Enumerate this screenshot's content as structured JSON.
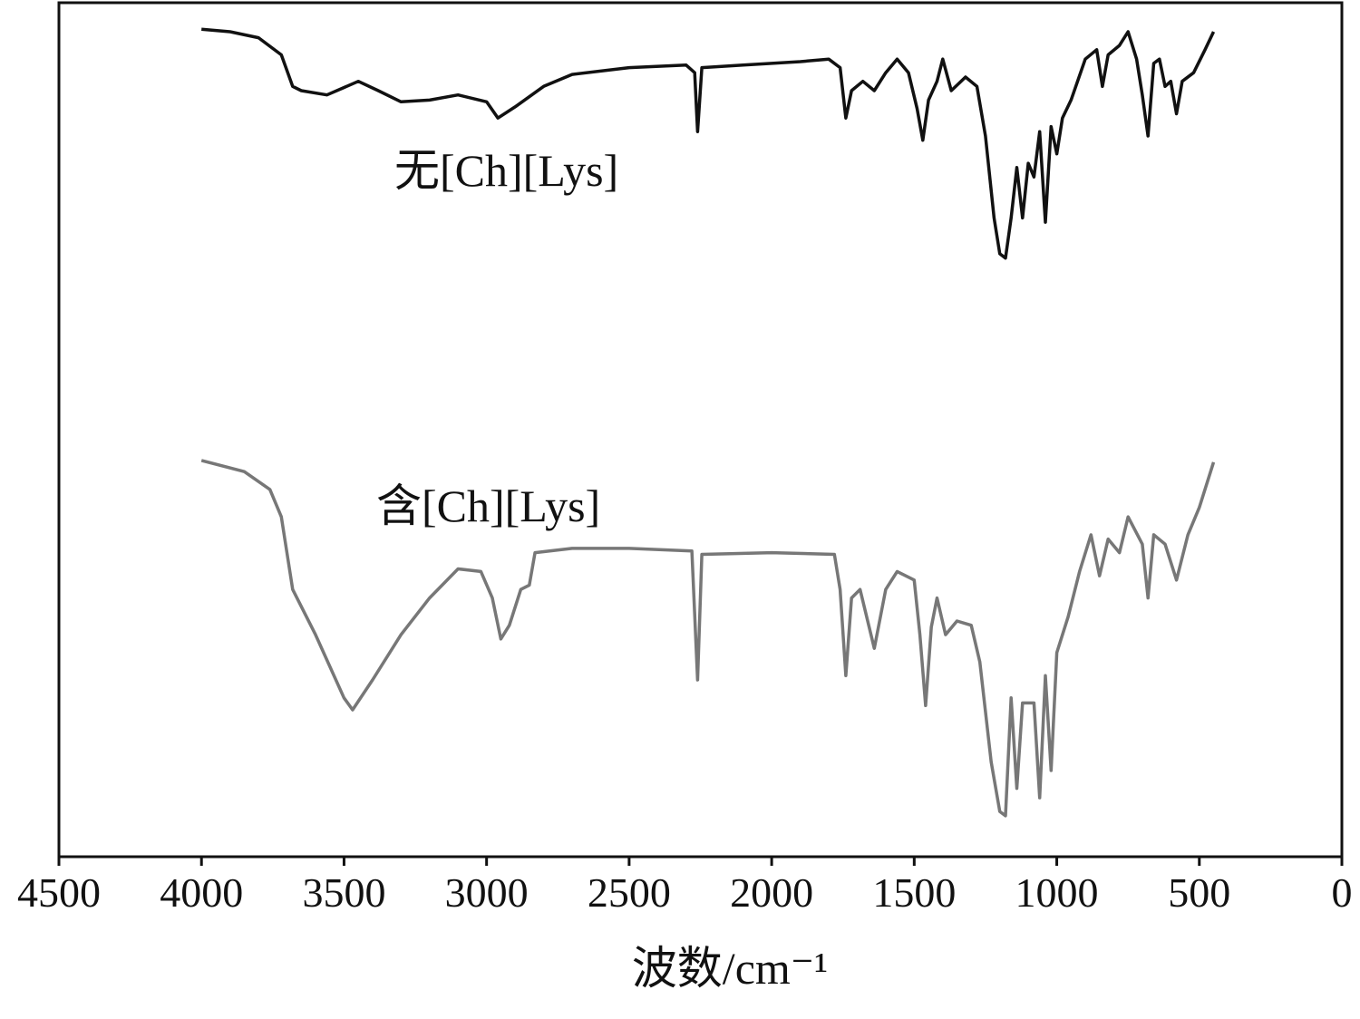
{
  "chart_data": {
    "type": "line",
    "x_label": "波数/cm⁻¹",
    "xlim": [
      4500,
      0
    ],
    "xticks": [
      4500,
      4000,
      3500,
      3000,
      2500,
      2000,
      1500,
      1000,
      500,
      0
    ],
    "ylim": [
      0,
      100
    ],
    "series": [
      {
        "name": "无[Ch][Lys]",
        "color": "#111111",
        "x": [
          4000,
          3900,
          3800,
          3720,
          3680,
          3650,
          3560,
          3450,
          3380,
          3300,
          3200,
          3100,
          3000,
          2960,
          2900,
          2800,
          2700,
          2500,
          2300,
          2270,
          2260,
          2245,
          2100,
          1900,
          1800,
          1760,
          1740,
          1720,
          1680,
          1640,
          1600,
          1560,
          1520,
          1490,
          1470,
          1450,
          1420,
          1400,
          1370,
          1320,
          1280,
          1250,
          1220,
          1200,
          1180,
          1160,
          1140,
          1120,
          1100,
          1080,
          1060,
          1040,
          1020,
          1000,
          980,
          950,
          900,
          860,
          840,
          820,
          780,
          750,
          720,
          700,
          680,
          660,
          640,
          620,
          600,
          580,
          560,
          520,
          480,
          450
        ],
        "values": [
          96.9,
          96.6,
          95.9,
          93.9,
          90.2,
          89.7,
          89.2,
          90.8,
          89.7,
          88.4,
          88.6,
          89.2,
          88.4,
          86.5,
          87.8,
          90.2,
          91.6,
          92.4,
          92.7,
          91.8,
          84.9,
          92.4,
          92.7,
          93.1,
          93.4,
          92.4,
          86.5,
          89.7,
          90.8,
          89.7,
          91.8,
          93.4,
          91.8,
          87.6,
          83.9,
          88.6,
          90.8,
          93.4,
          89.7,
          91.3,
          90.2,
          84.4,
          74.8,
          70.6,
          70.1,
          74.8,
          80.7,
          74.8,
          81.2,
          79.6,
          84.9,
          74.3,
          85.5,
          82.3,
          86.5,
          88.6,
          93.4,
          94.5,
          90.2,
          93.9,
          95.0,
          96.6,
          93.4,
          89.2,
          84.4,
          92.9,
          93.4,
          90.2,
          90.8,
          87.0,
          90.8,
          91.8,
          94.5,
          96.6
        ]
      },
      {
        "name": "含[Ch][Lys]",
        "color": "#777777",
        "x": [
          4000,
          3850,
          3760,
          3720,
          3680,
          3600,
          3500,
          3470,
          3400,
          3300,
          3200,
          3100,
          3020,
          2980,
          2950,
          2920,
          2880,
          2850,
          2830,
          2700,
          2500,
          2280,
          2260,
          2245,
          2000,
          1780,
          1760,
          1740,
          1720,
          1690,
          1640,
          1600,
          1560,
          1500,
          1480,
          1460,
          1440,
          1420,
          1390,
          1350,
          1300,
          1270,
          1230,
          1200,
          1180,
          1160,
          1140,
          1120,
          1080,
          1060,
          1040,
          1020,
          1000,
          960,
          920,
          880,
          850,
          820,
          780,
          750,
          700,
          680,
          660,
          620,
          580,
          540,
          500,
          450
        ],
        "values": [
          46.4,
          45.1,
          43.0,
          39.8,
          31.3,
          26.0,
          18.6,
          17.2,
          20.7,
          26.0,
          30.3,
          33.7,
          33.4,
          30.3,
          25.5,
          27.1,
          31.3,
          31.8,
          35.6,
          36.1,
          36.1,
          35.8,
          20.7,
          35.4,
          35.6,
          35.4,
          31.3,
          21.2,
          30.3,
          31.3,
          24.4,
          31.3,
          33.4,
          32.4,
          26.0,
          17.7,
          26.9,
          30.3,
          26.0,
          27.6,
          27.1,
          22.8,
          11.1,
          5.3,
          4.8,
          18.6,
          8.0,
          18.0,
          18.0,
          6.9,
          21.2,
          10.1,
          23.9,
          28.1,
          33.4,
          37.7,
          32.9,
          37.2,
          35.6,
          39.8,
          36.6,
          30.3,
          37.7,
          36.6,
          32.4,
          37.7,
          40.9,
          46.2
        ]
      }
    ]
  }
}
